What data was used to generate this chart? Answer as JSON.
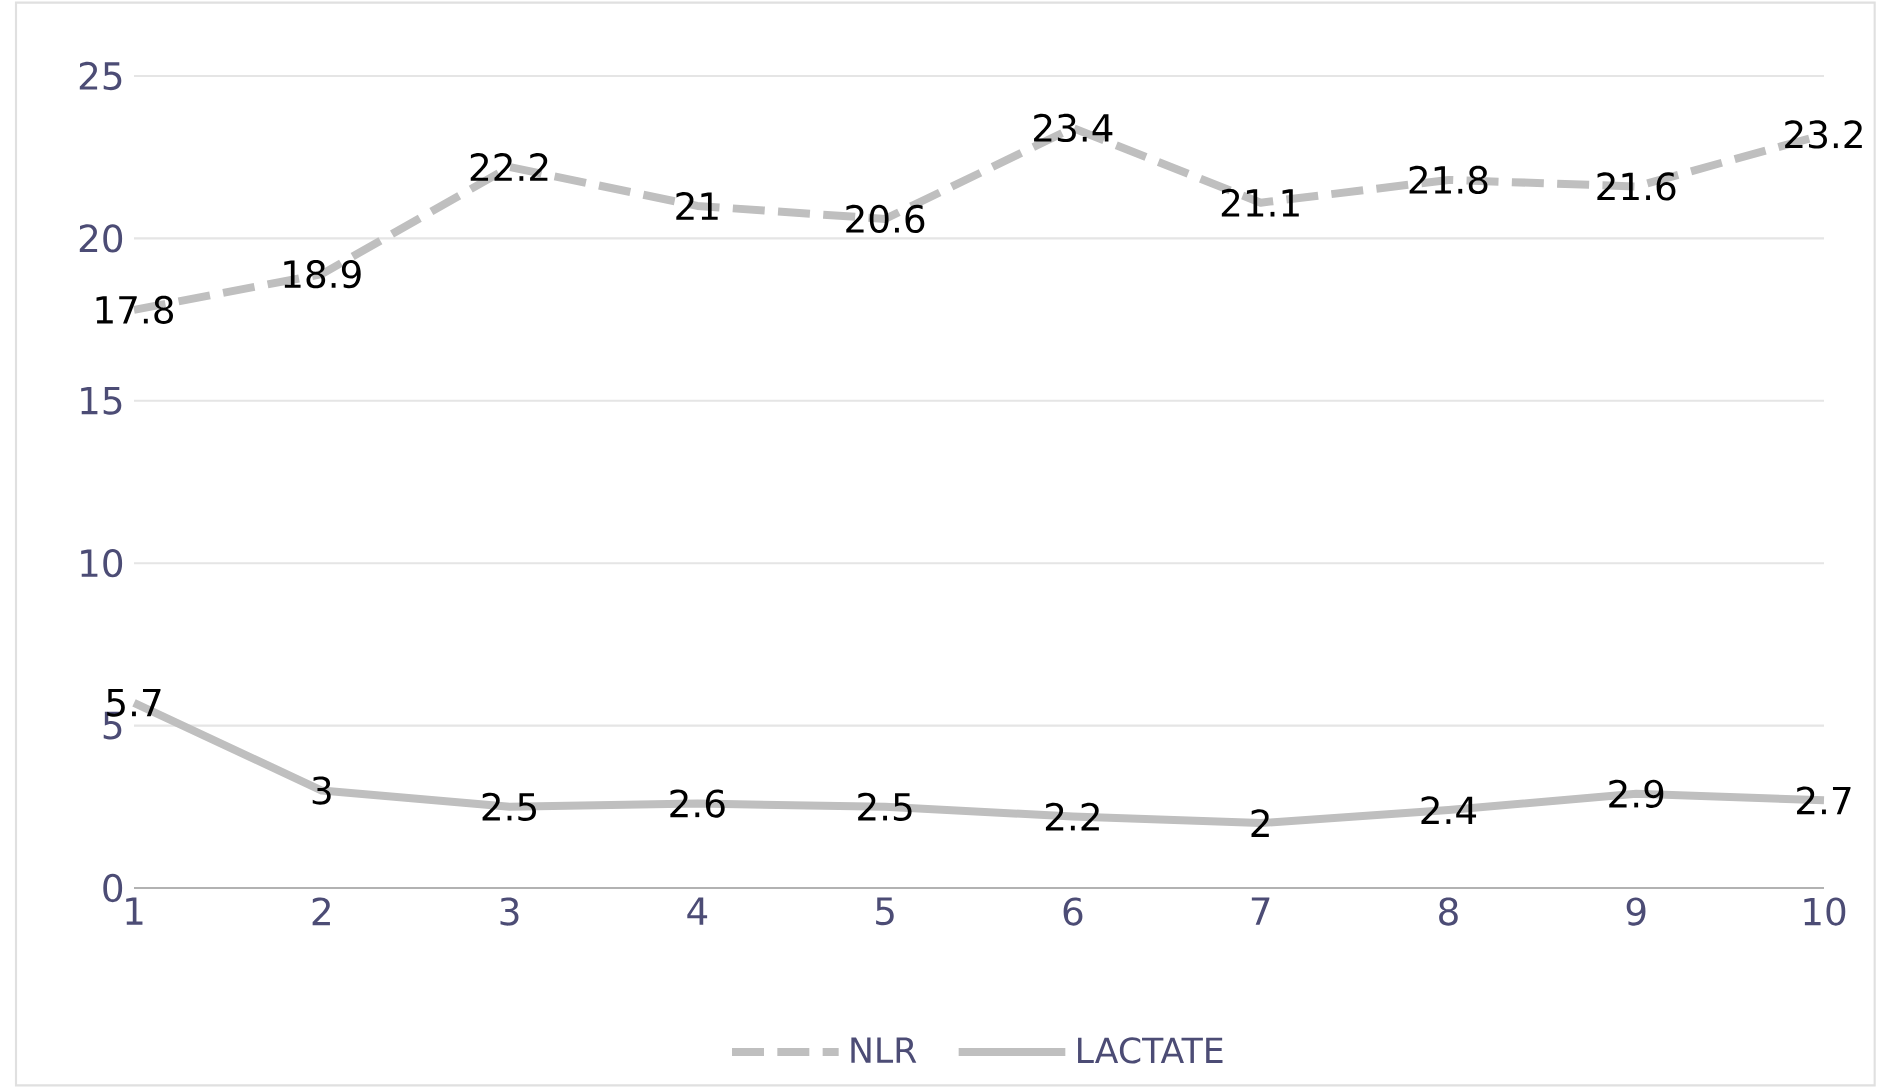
{
  "chart_data": {
    "type": "line",
    "x": [
      1,
      2,
      3,
      4,
      5,
      6,
      7,
      8,
      9,
      10
    ],
    "xlim": [
      1,
      10
    ],
    "xticks": [
      1,
      2,
      3,
      4,
      5,
      6,
      7,
      8,
      9,
      10
    ],
    "ylim": [
      0,
      25
    ],
    "yticks": [
      0,
      5,
      10,
      15,
      20,
      25
    ],
    "grid": "y",
    "legend": "bottom",
    "data_labels": true,
    "series": [
      {
        "name": "NLR",
        "color": "#bfbfbf",
        "line_style": "dashed",
        "values": [
          17.8,
          18.9,
          22.2,
          21,
          20.6,
          23.4,
          21.1,
          21.8,
          21.6,
          23.2
        ]
      },
      {
        "name": "LACTATE",
        "color": "#bfbfbf",
        "line_style": "solid",
        "values": [
          5.7,
          3,
          2.5,
          2.6,
          2.5,
          2.2,
          2,
          2.4,
          2.9,
          2.7
        ]
      }
    ]
  }
}
